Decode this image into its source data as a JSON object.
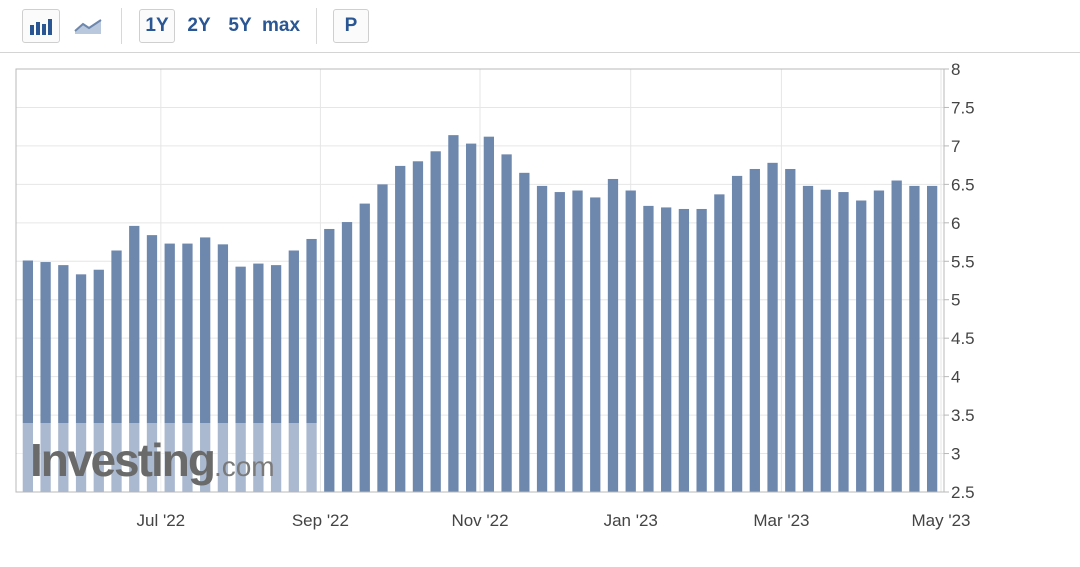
{
  "toolbar": {
    "chart_type_buttons": [
      {
        "icon": "bar-chart-icon",
        "active": true
      },
      {
        "icon": "area-chart-icon",
        "active": false
      }
    ],
    "range_buttons": [
      "1Y",
      "2Y",
      "5Y",
      "max"
    ],
    "selected_range": "1Y",
    "p_button": "P"
  },
  "colors": {
    "bar": "#6d87ad",
    "accent": "#2a5694",
    "grid": "#e6e6e6",
    "axis_text": "#444444"
  },
  "watermark": {
    "text": "Investing",
    "suffix": ".com"
  },
  "chart_data": {
    "type": "bar",
    "ylim": [
      2.5,
      8
    ],
    "y_ticks": [
      "8",
      "7.5",
      "7",
      "6.5",
      "6",
      "5.5",
      "5",
      "4.5",
      "4",
      "3.5",
      "3",
      "2.5"
    ],
    "x_tick_labels": [
      {
        "label": "Jul '22",
        "bar_index": 7.5
      },
      {
        "label": "Sep '22",
        "bar_index": 16.5
      },
      {
        "label": "Nov '22",
        "bar_index": 25.5
      },
      {
        "label": "Jan '23",
        "bar_index": 34
      },
      {
        "label": "Mar '23",
        "bar_index": 42.5
      },
      {
        "label": "May '23",
        "bar_index": 51.5
      }
    ],
    "grid": true,
    "values": [
      5.51,
      5.49,
      5.45,
      5.33,
      5.39,
      5.64,
      5.96,
      5.84,
      5.73,
      5.73,
      5.81,
      5.72,
      5.43,
      5.47,
      5.45,
      5.64,
      5.79,
      5.92,
      6.01,
      6.25,
      6.5,
      6.74,
      6.8,
      6.93,
      7.14,
      7.03,
      7.12,
      6.89,
      6.65,
      6.48,
      6.4,
      6.42,
      6.33,
      6.57,
      6.42,
      6.22,
      6.2,
      6.18,
      6.18,
      6.37,
      6.61,
      6.7,
      6.78,
      6.7,
      6.48,
      6.43,
      6.4,
      6.29,
      6.42,
      6.55,
      6.48,
      6.48
    ]
  }
}
